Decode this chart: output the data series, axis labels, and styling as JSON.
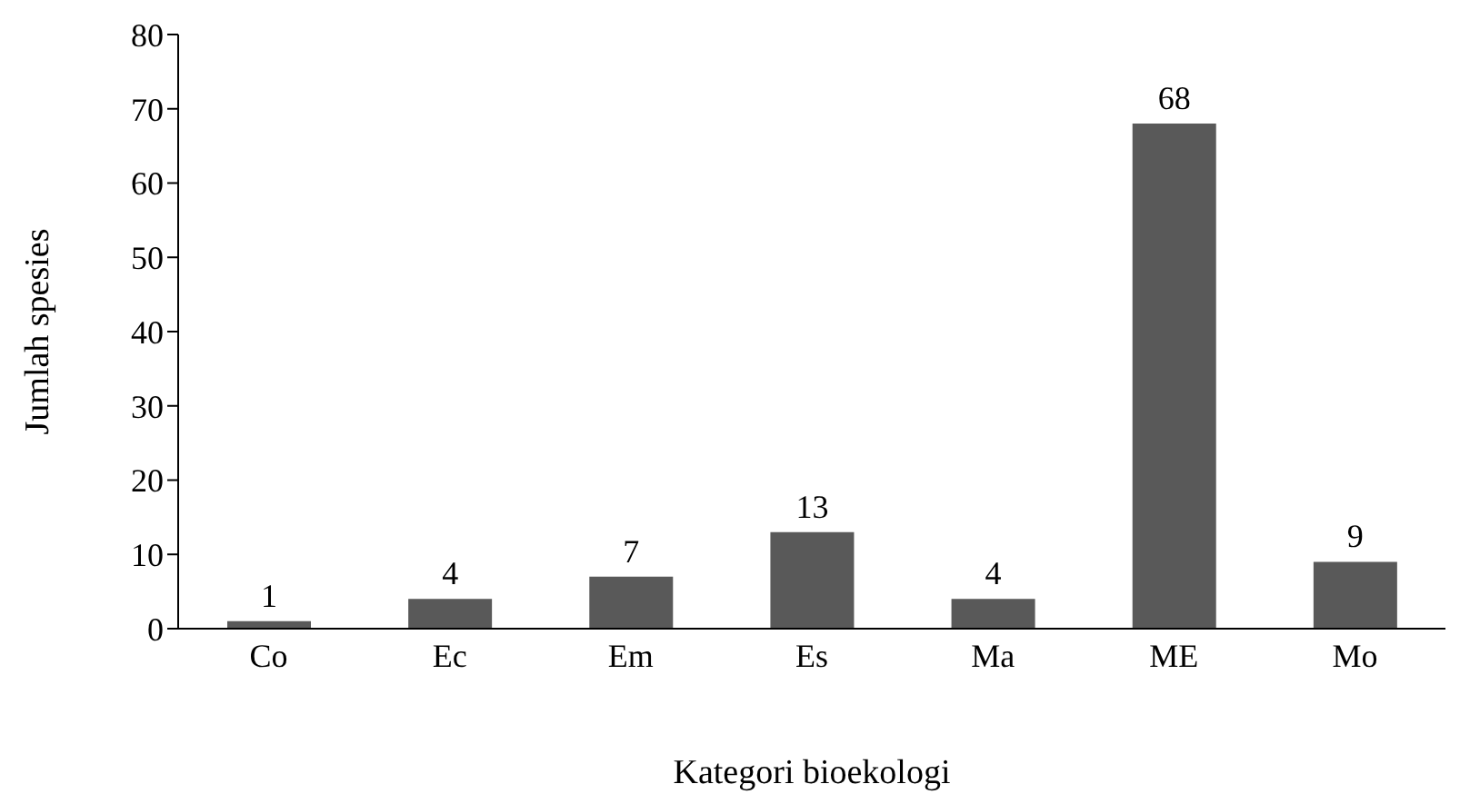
{
  "chart_data": {
    "type": "bar",
    "xlabel": "Kategori bioekologi",
    "ylabel": "Jumlah spesies",
    "categories": [
      "Co",
      "Ec",
      "Em",
      "Es",
      "Ma",
      "ME",
      "Mo"
    ],
    "values": [
      1,
      4,
      7,
      13,
      4,
      68,
      9
    ],
    "color": "#595959",
    "ylim": [
      0,
      80
    ],
    "yticks": [
      0,
      10,
      20,
      30,
      40,
      50,
      60,
      70,
      80
    ],
    "grid": false,
    "legend": false,
    "data_labels": true
  }
}
